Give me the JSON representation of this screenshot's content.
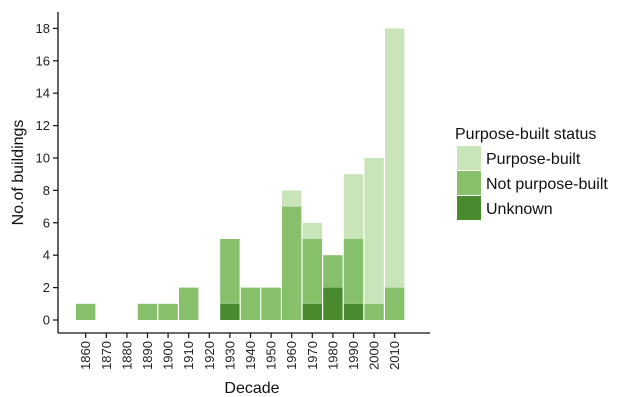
{
  "chart_data": {
    "type": "bar",
    "stacked": true,
    "categories": [
      "1860",
      "1870",
      "1880",
      "1890",
      "1900",
      "1910",
      "1920",
      "1930",
      "1940",
      "1950",
      "1960",
      "1970",
      "1980",
      "1990",
      "2000",
      "2010"
    ],
    "series": [
      {
        "name": "Unknown",
        "color": "#4a8a2f",
        "values": [
          0,
          0,
          0,
          0,
          0,
          0,
          0,
          1,
          0,
          0,
          0,
          1,
          2,
          1,
          0,
          0
        ]
      },
      {
        "name": "Not purpose-built",
        "color": "#86c06a",
        "values": [
          1,
          0,
          0,
          1,
          1,
          2,
          0,
          4,
          2,
          2,
          7,
          4,
          2,
          4,
          1,
          2
        ]
      },
      {
        "name": "Purpose-built",
        "color": "#c9e4b8",
        "values": [
          0,
          0,
          0,
          0,
          0,
          0,
          0,
          0,
          0,
          0,
          1,
          1,
          0,
          4,
          9,
          16
        ]
      }
    ],
    "title": "",
    "xlabel": "Decade",
    "ylabel": "No.of buildings",
    "ylim": [
      0,
      19
    ],
    "yticks": [
      0,
      2,
      4,
      6,
      8,
      10,
      12,
      14,
      16,
      18
    ],
    "grid": false,
    "legend": {
      "title": "Purpose-built status",
      "placement": "right",
      "entries": [
        "Purpose-built",
        "Not purpose-built",
        "Unknown"
      ]
    }
  }
}
